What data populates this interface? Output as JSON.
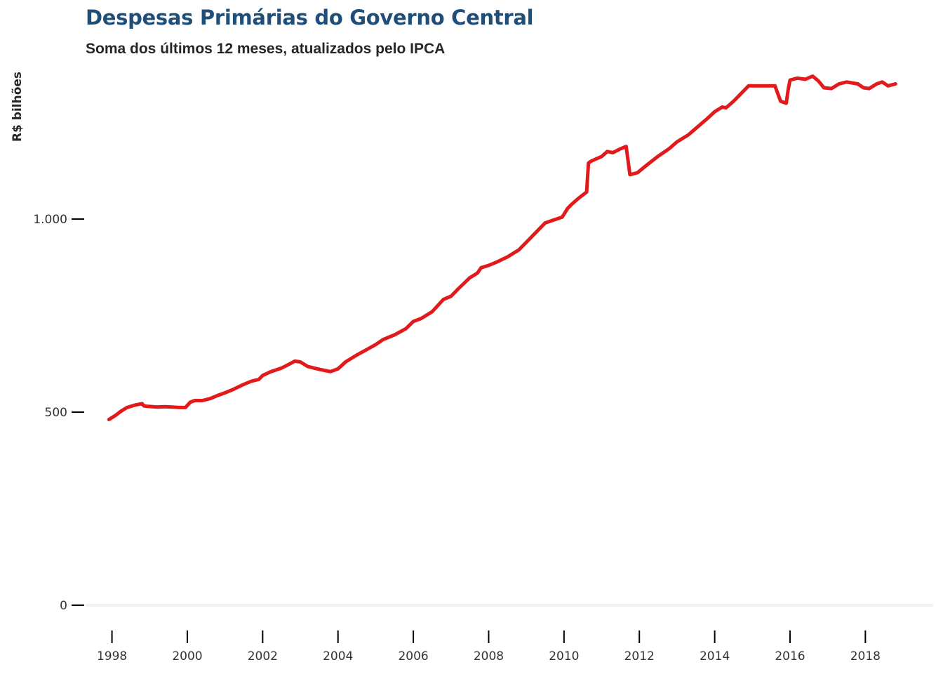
{
  "title": "Despesas Primárias do Governo Central",
  "subtitle": "Soma dos últimos 12 meses, atualizados pelo IPCA",
  "colors": {
    "title": "#1f4e79",
    "line": "#e31a1c",
    "axis": "#000000",
    "baseline": "#eef2f6",
    "text": "#333333"
  },
  "chart_data": {
    "type": "line",
    "title": "Despesas Primárias do Governo Central",
    "subtitle": "Soma dos últimos 12 meses, atualizados pelo IPCA",
    "xlabel": "",
    "ylabel": "R$ bilhões",
    "xlim": [
      1997.3,
      2019.8
    ],
    "ylim": [
      0,
      1420
    ],
    "x_ticks": [
      1998,
      2000,
      2002,
      2004,
      2006,
      2008,
      2010,
      2012,
      2014,
      2016,
      2018
    ],
    "x_tick_labels": [
      "1998",
      "2000",
      "2002",
      "2004",
      "2006",
      "2008",
      "2010",
      "2012",
      "2014",
      "2016",
      "2018"
    ],
    "y_ticks": [
      0,
      500,
      1000
    ],
    "y_tick_labels": [
      "0",
      "500",
      "1.000"
    ],
    "grid": false,
    "legend": "none",
    "series": [
      {
        "x": [
          1997.92,
          1998.1,
          1998.25,
          1998.4,
          1998.6,
          1998.8,
          1998.85,
          1998.95,
          1999.2,
          1999.4,
          1999.6,
          1999.8,
          1999.95,
          2000.08,
          2000.2,
          2000.4,
          2000.6,
          2000.8,
          2001.0,
          2001.2,
          2001.5,
          2001.7,
          2001.9,
          2002.0,
          2002.2,
          2002.5,
          2002.7,
          2002.85,
          2003.0,
          2003.2,
          2003.5,
          2003.8,
          2004.0,
          2004.2,
          2004.5,
          2004.8,
          2005.0,
          2005.2,
          2005.5,
          2005.8,
          2006.0,
          2006.2,
          2006.5,
          2006.8,
          2007.0,
          2007.2,
          2007.5,
          2007.7,
          2007.8,
          2008.0,
          2008.2,
          2008.5,
          2008.8,
          2009.0,
          2009.2,
          2009.5,
          2009.8,
          2009.95,
          2010.1,
          2010.2,
          2010.4,
          2010.6,
          2010.65,
          2010.72,
          2011.0,
          2011.15,
          2011.3,
          2011.5,
          2011.65,
          2011.75,
          2011.95,
          2012.2,
          2012.5,
          2012.8,
          2013.0,
          2013.3,
          2013.5,
          2013.8,
          2014.0,
          2014.2,
          2014.3,
          2014.5,
          2014.7,
          2014.9,
          2015.2,
          2015.4,
          2015.6,
          2015.75,
          2015.9,
          2015.95,
          2016.0,
          2016.2,
          2016.4,
          2016.6,
          2016.75,
          2016.9,
          2017.1,
          2017.3,
          2017.5,
          2017.8,
          2017.95,
          2018.1,
          2018.3,
          2018.45,
          2018.6,
          2018.8
        ],
        "y": [
          481,
          492,
          503,
          512,
          518,
          522,
          516,
          515,
          513,
          514,
          513,
          512,
          512,
          526,
          530,
          530,
          535,
          543,
          550,
          558,
          572,
          580,
          585,
          595,
          604,
          614,
          624,
          632,
          630,
          618,
          611,
          605,
          612,
          630,
          648,
          664,
          675,
          688,
          700,
          716,
          735,
          742,
          760,
          792,
          800,
          820,
          848,
          860,
          874,
          880,
          888,
          902,
          920,
          940,
          960,
          990,
          1000,
          1005,
          1028,
          1038,
          1055,
          1070,
          1145,
          1150,
          1162,
          1175,
          1172,
          1182,
          1188,
          1115,
          1120,
          1140,
          1163,
          1183,
          1200,
          1218,
          1235,
          1260,
          1278,
          1290,
          1288,
          1305,
          1325,
          1345,
          1345,
          1345,
          1345,
          1305,
          1300,
          1335,
          1360,
          1365,
          1362,
          1370,
          1358,
          1340,
          1338,
          1350,
          1355,
          1350,
          1340,
          1338,
          1350,
          1355,
          1345,
          1350
        ]
      }
    ]
  }
}
